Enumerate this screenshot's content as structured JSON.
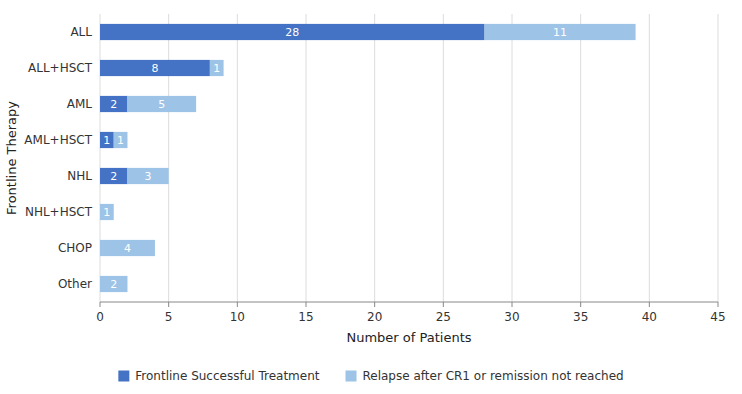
{
  "chart_data": {
    "type": "bar",
    "orientation": "horizontal",
    "stacked": true,
    "categories": [
      "ALL",
      "ALL+HSCT",
      "AML",
      "AML+HSCT",
      "NHL",
      "NHL+HSCT",
      "CHOP",
      "Other"
    ],
    "series": [
      {
        "name": "Frontline Successful Treatment",
        "color": "#4472C4",
        "values": [
          28,
          8,
          2,
          1,
          2,
          0,
          0,
          0
        ]
      },
      {
        "name": "Relapse after CR1 or remission not reached",
        "color": "#9DC3E6",
        "values": [
          11,
          1,
          5,
          1,
          3,
          1,
          4,
          2
        ]
      }
    ],
    "xlabel": "Number of Patients",
    "ylabel": "Frontline Therapy",
    "xlim": [
      0,
      45
    ],
    "xticks": [
      0,
      5,
      10,
      15,
      20,
      25,
      30,
      35,
      40,
      45
    ],
    "grid": true,
    "data_labels": true,
    "legend": "bottom"
  }
}
